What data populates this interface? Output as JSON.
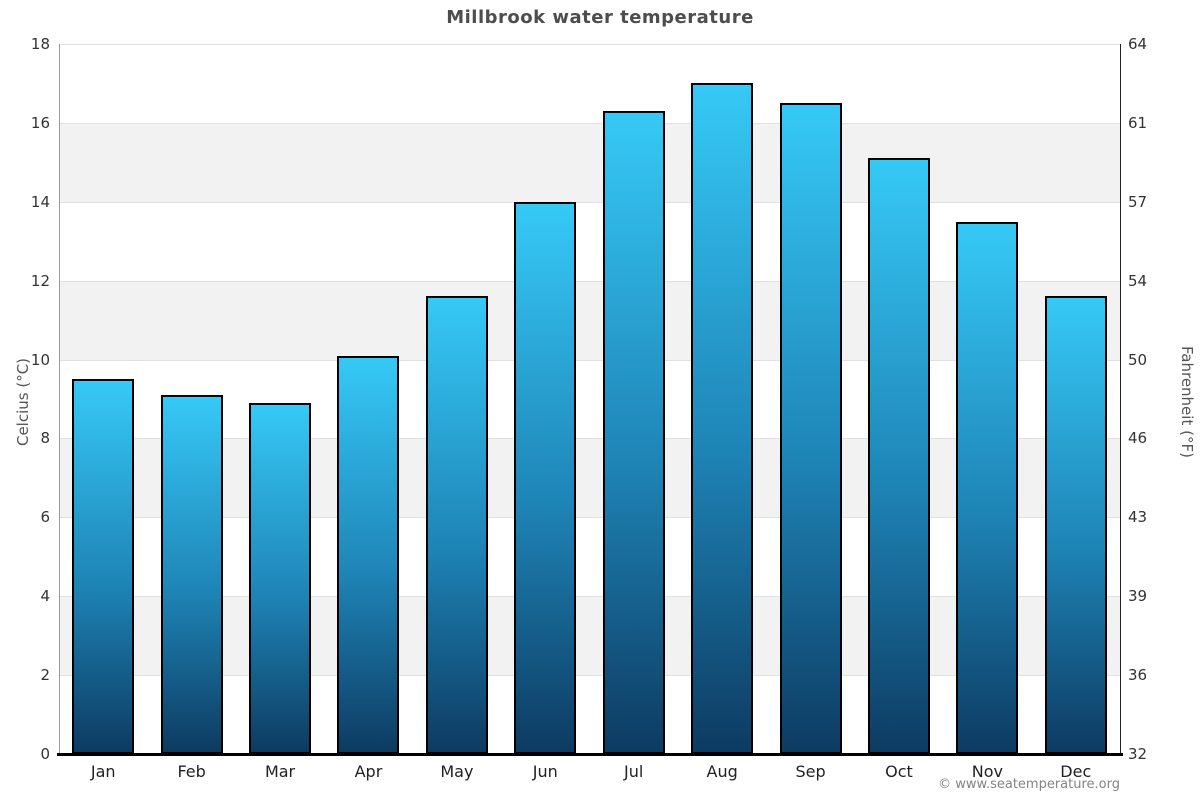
{
  "page": {
    "copyright": "© www.seatemperature.org"
  },
  "chart_data": {
    "type": "bar",
    "title": "Millbrook water temperature",
    "categories": [
      "Jan",
      "Feb",
      "Mar",
      "Apr",
      "May",
      "Jun",
      "Jul",
      "Aug",
      "Sep",
      "Oct",
      "Nov",
      "Dec"
    ],
    "values": [
      9.5,
      9.1,
      8.9,
      10.1,
      11.6,
      14.0,
      16.3,
      17.0,
      16.5,
      15.1,
      13.5,
      11.6
    ],
    "xlabel": "",
    "ylabel_left": "Celcius (°C)",
    "ylabel_right": "Fahrenheit (°F)",
    "ylim": [
      0,
      18
    ],
    "yticks_celsius": [
      0,
      2,
      4,
      6,
      8,
      10,
      12,
      14,
      16,
      18
    ],
    "yticks_fahrenheit_labels": [
      "32",
      "36",
      "39",
      "43",
      "46",
      "50",
      "54",
      "57",
      "61",
      "64"
    ],
    "alternate_bands_celsius": [
      [
        2,
        4
      ],
      [
        6,
        8
      ],
      [
        10,
        12
      ],
      [
        14,
        16
      ]
    ],
    "grid": true,
    "legend_position": "none",
    "colors": {
      "bar_top": "#36c9f6",
      "bar_mid": "#1e84b6",
      "bar_bottom": "#0d3b62",
      "bar_border": "#000000",
      "band_fill": "#f2f2f2",
      "gridline": "#e0e0e0",
      "left_axis_line": "#999999",
      "right_axis_line": "#222222",
      "x_axis_line": "#000000",
      "title_color": "#4d4d4d",
      "tick_label_color": "#333333",
      "axis_title_color": "#555555",
      "copyright_color": "#848484"
    }
  }
}
